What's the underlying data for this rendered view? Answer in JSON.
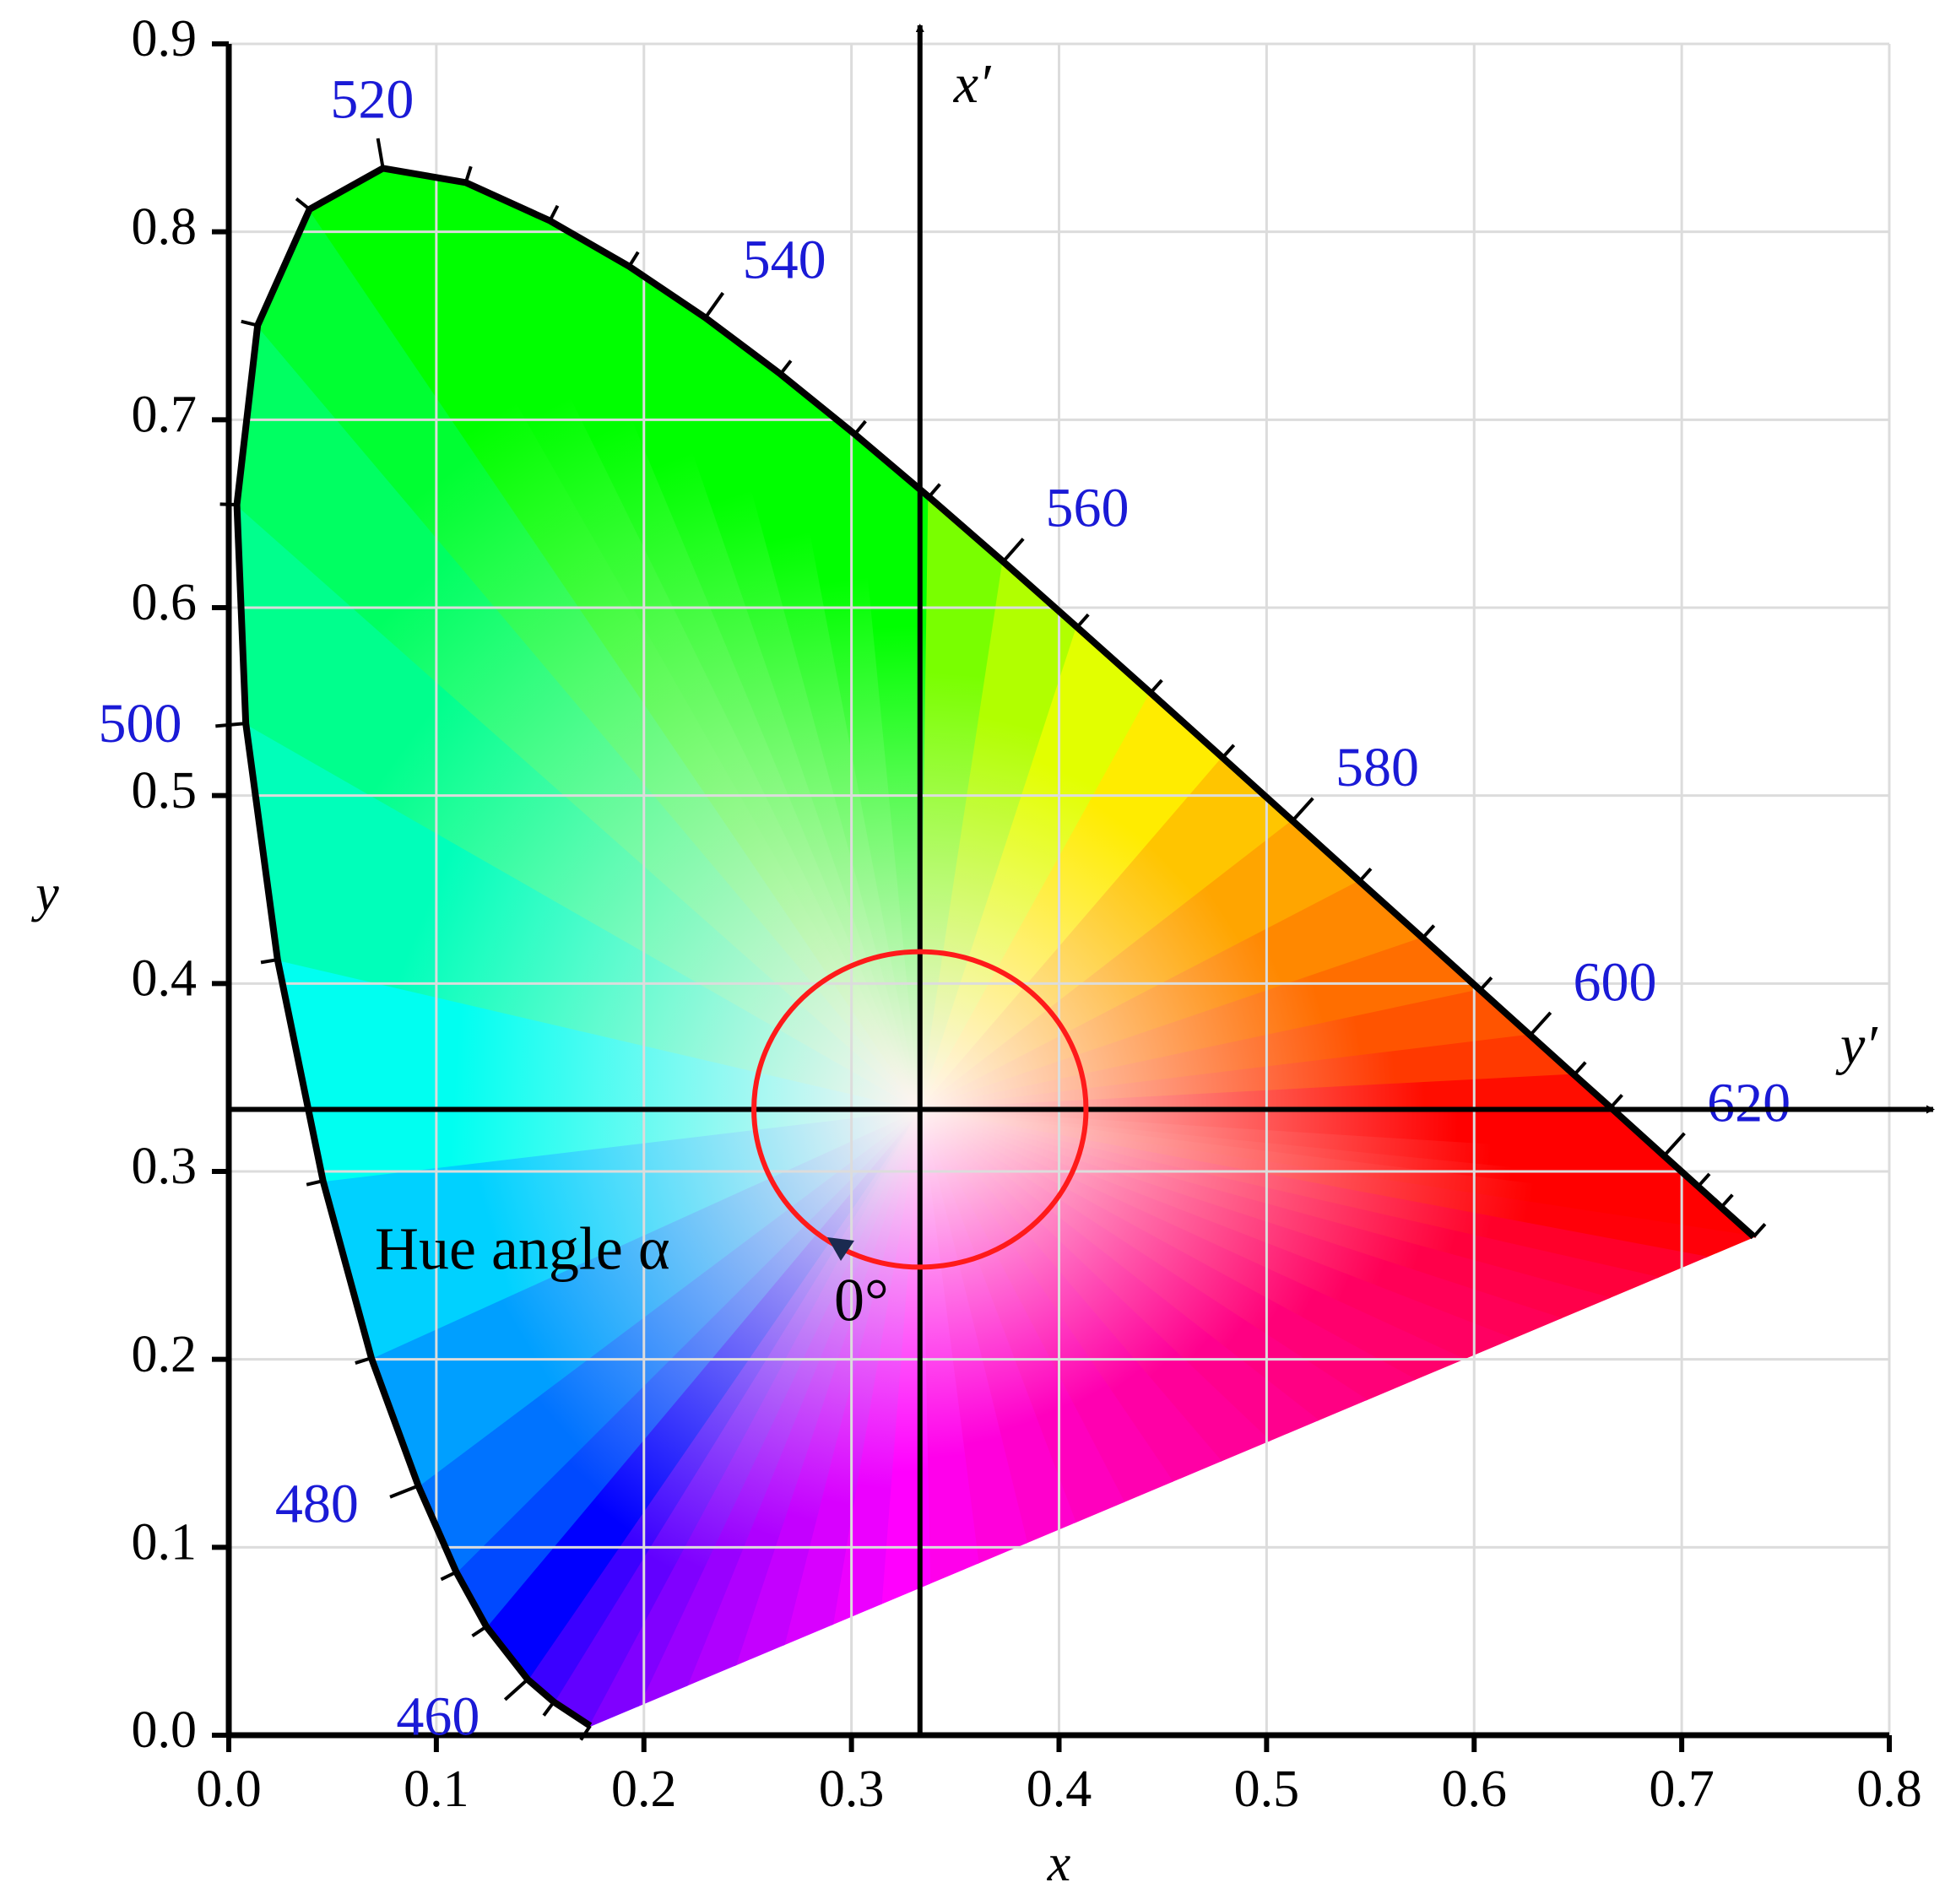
{
  "chart_data": {
    "type": "line",
    "xlabel": "x",
    "ylabel": "y",
    "xlim": [
      0,
      0.8
    ],
    "ylim": [
      0,
      0.9
    ],
    "xticks": [
      {
        "value": 0,
        "label": "0.0"
      },
      0.1,
      0.2,
      0.3,
      0.4,
      0.5,
      0.6,
      0.7,
      0.8
    ],
    "yticks": [
      {
        "value": 0,
        "label": "0.0"
      },
      0.1,
      0.2,
      0.3,
      0.4,
      0.5,
      0.6,
      0.7,
      0.8,
      0.9
    ],
    "grid": true,
    "spectral_locus": {
      "color": "#000000",
      "label_color": "#1a1ad6",
      "wavelengths": [
        380,
        450,
        460,
        470,
        475,
        480,
        485,
        490,
        495,
        500,
        505,
        510,
        515,
        520,
        525,
        530,
        535,
        540,
        545,
        550,
        555,
        560,
        565,
        570,
        575,
        580,
        585,
        590,
        595,
        600,
        605,
        610,
        620,
        630,
        640,
        700
      ],
      "labels": [
        null,
        null,
        "460",
        null,
        null,
        "480",
        null,
        null,
        null,
        "500",
        null,
        null,
        null,
        "520",
        null,
        null,
        null,
        "540",
        null,
        null,
        null,
        "560",
        null,
        null,
        null,
        "580",
        null,
        null,
        null,
        "600",
        null,
        null,
        "620",
        null,
        null,
        null
      ],
      "x": [
        0.1741,
        0.1566,
        0.144,
        0.1241,
        0.1096,
        0.0913,
        0.0687,
        0.0454,
        0.0235,
        0.0082,
        0.0039,
        0.0139,
        0.0389,
        0.0743,
        0.1142,
        0.1547,
        0.1929,
        0.2296,
        0.2658,
        0.3016,
        0.3373,
        0.3731,
        0.4087,
        0.4441,
        0.4788,
        0.5125,
        0.5448,
        0.5752,
        0.6029,
        0.627,
        0.6482,
        0.6658,
        0.6915,
        0.7079,
        0.719,
        0.7347
      ],
      "y": [
        0.005,
        0.0177,
        0.0297,
        0.0578,
        0.0868,
        0.1327,
        0.2007,
        0.295,
        0.4127,
        0.5384,
        0.6548,
        0.7502,
        0.812,
        0.8338,
        0.8262,
        0.8059,
        0.7816,
        0.7543,
        0.7243,
        0.6923,
        0.6589,
        0.6245,
        0.5896,
        0.5547,
        0.5202,
        0.4866,
        0.4544,
        0.4242,
        0.3965,
        0.3725,
        0.3514,
        0.334,
        0.3083,
        0.292,
        0.2809,
        0.2653
      ]
    },
    "white_point": [
      0.333,
      0.333
    ],
    "x_prime_label": "x′",
    "y_prime_label": "y′",
    "hue_circle": {
      "radius": 0.08,
      "color": "#ff1a1a"
    },
    "hue_label": "Hue angle α",
    "zero_label": "0°"
  }
}
